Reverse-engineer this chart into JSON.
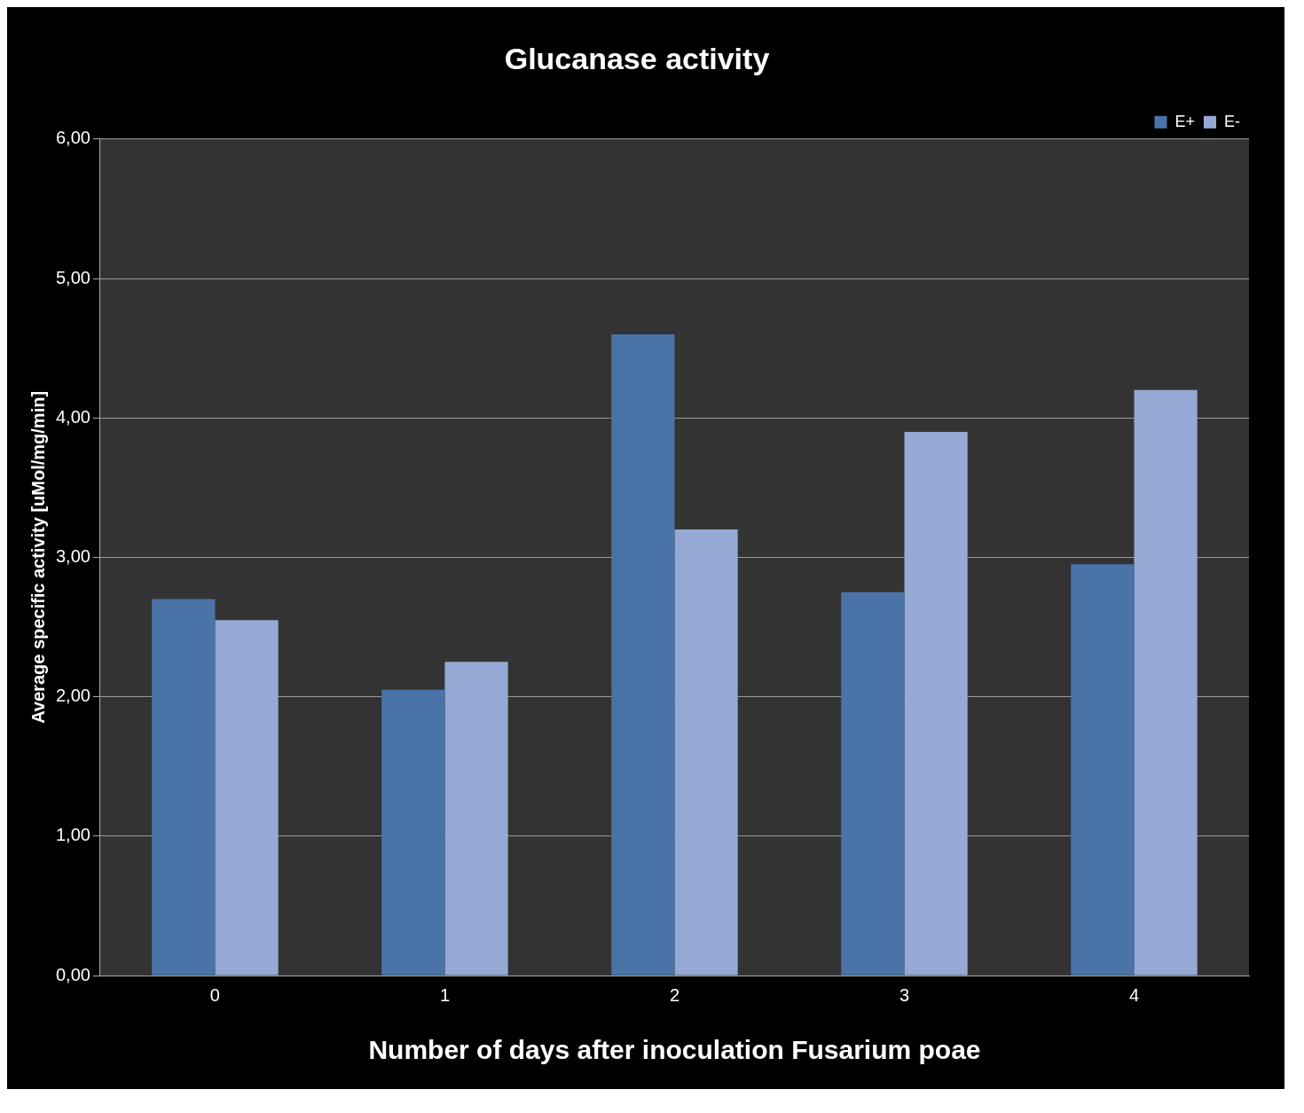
{
  "chart_data": {
    "type": "bar",
    "title": "Glucanase activity",
    "xlabel": "Number of days after inoculation Fusarium poae",
    "ylabel": "Average specific activity [uMol/mg/min]",
    "categories": [
      "0",
      "1",
      "2",
      "3",
      "4"
    ],
    "series": [
      {
        "name": "E+",
        "color": "#4a74a8",
        "values": [
          2.7,
          2.05,
          4.6,
          2.75,
          2.95
        ]
      },
      {
        "name": "E-",
        "color": "#95a9d4",
        "values": [
          2.55,
          2.25,
          3.2,
          3.9,
          4.2
        ]
      }
    ],
    "ylim": [
      0,
      6
    ],
    "yticks": [
      {
        "value": 0,
        "label": "0,00"
      },
      {
        "value": 1,
        "label": "1,00"
      },
      {
        "value": 2,
        "label": "2,00"
      },
      {
        "value": 3,
        "label": "3,00"
      },
      {
        "value": 4,
        "label": "4,00"
      },
      {
        "value": 5,
        "label": "5,00"
      },
      {
        "value": 6,
        "label": "6,00"
      }
    ],
    "grid": "y",
    "legend": "top right"
  }
}
